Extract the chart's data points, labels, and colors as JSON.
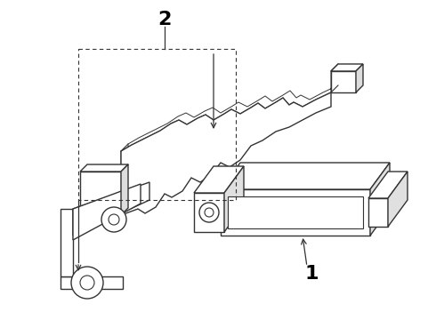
{
  "background_color": "#ffffff",
  "line_color": "#333333",
  "label1": "1",
  "label2": "2",
  "fig_width": 4.9,
  "fig_height": 3.6,
  "dpi": 100
}
